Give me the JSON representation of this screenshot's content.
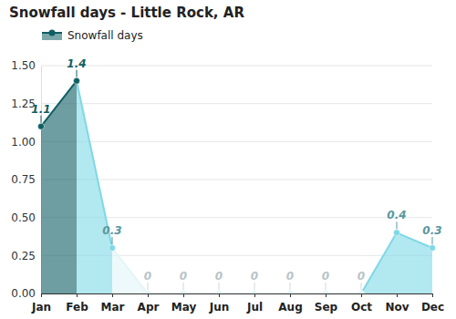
{
  "chart_data": {
    "type": "line",
    "title": "Snowfall days - Little Rock, AR",
    "categories": [
      "Jan",
      "Feb",
      "Mar",
      "Apr",
      "May",
      "Jun",
      "Jul",
      "Aug",
      "Sep",
      "Oct",
      "Nov",
      "Dec"
    ],
    "series": [
      {
        "name": "Snowfall days",
        "values": [
          1.1,
          1.4,
          0.3,
          0,
          0,
          0,
          0,
          0,
          0,
          0,
          0.4,
          0.3
        ],
        "colors": [
          "#0e5e63",
          "#0e5e63",
          "#7fd8e6",
          "#e3f5f8",
          "#e3f5f8",
          "#e3f5f8",
          "#e3f5f8",
          "#e3f5f8",
          "#e3f5f8",
          "#e3f5f8",
          "#7fd8e6",
          "#7fd8e6"
        ],
        "marker": "circle"
      }
    ],
    "ylim": [
      0,
      1.5
    ],
    "yticks": [
      {
        "value": 0,
        "label": "0.00"
      },
      {
        "value": 0.25,
        "label": "0.25"
      },
      {
        "value": 0.5,
        "label": "0.50"
      },
      {
        "value": 0.75,
        "label": "0.75"
      },
      {
        "value": 1,
        "label": "1.00"
      },
      {
        "value": 1.25,
        "label": "1.25"
      },
      {
        "value": 1.5,
        "label": "1.50"
      }
    ],
    "grid": true,
    "data_labels": true,
    "legend": "top-left"
  }
}
